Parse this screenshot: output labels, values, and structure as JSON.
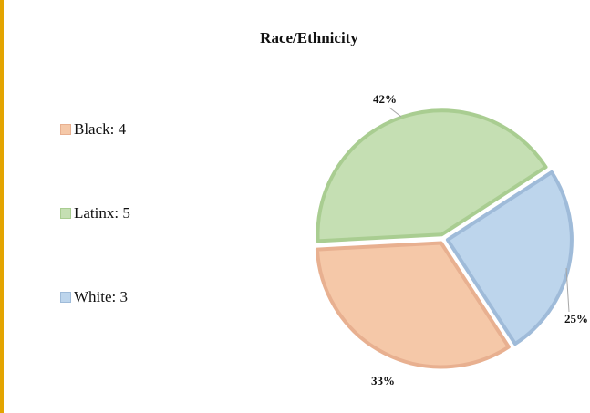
{
  "chart_data": {
    "type": "pie",
    "title": "Race/Ethnicity",
    "legend_position": "left",
    "slices": [
      {
        "label": "Black",
        "value": 4,
        "percent_label": "33%",
        "legend_text": "Black: 4",
        "color": "#f5c8a8",
        "border": "#e8b090"
      },
      {
        "label": "Latinx",
        "value": 5,
        "percent_label": "42%",
        "legend_text": "Latinx: 5",
        "color": "#c5dfb3",
        "border": "#a9cd91"
      },
      {
        "label": "White",
        "value": 3,
        "percent_label": "25%",
        "legend_text": "White: 3",
        "color": "#bdd5ec",
        "border": "#9fbbd9"
      }
    ]
  }
}
